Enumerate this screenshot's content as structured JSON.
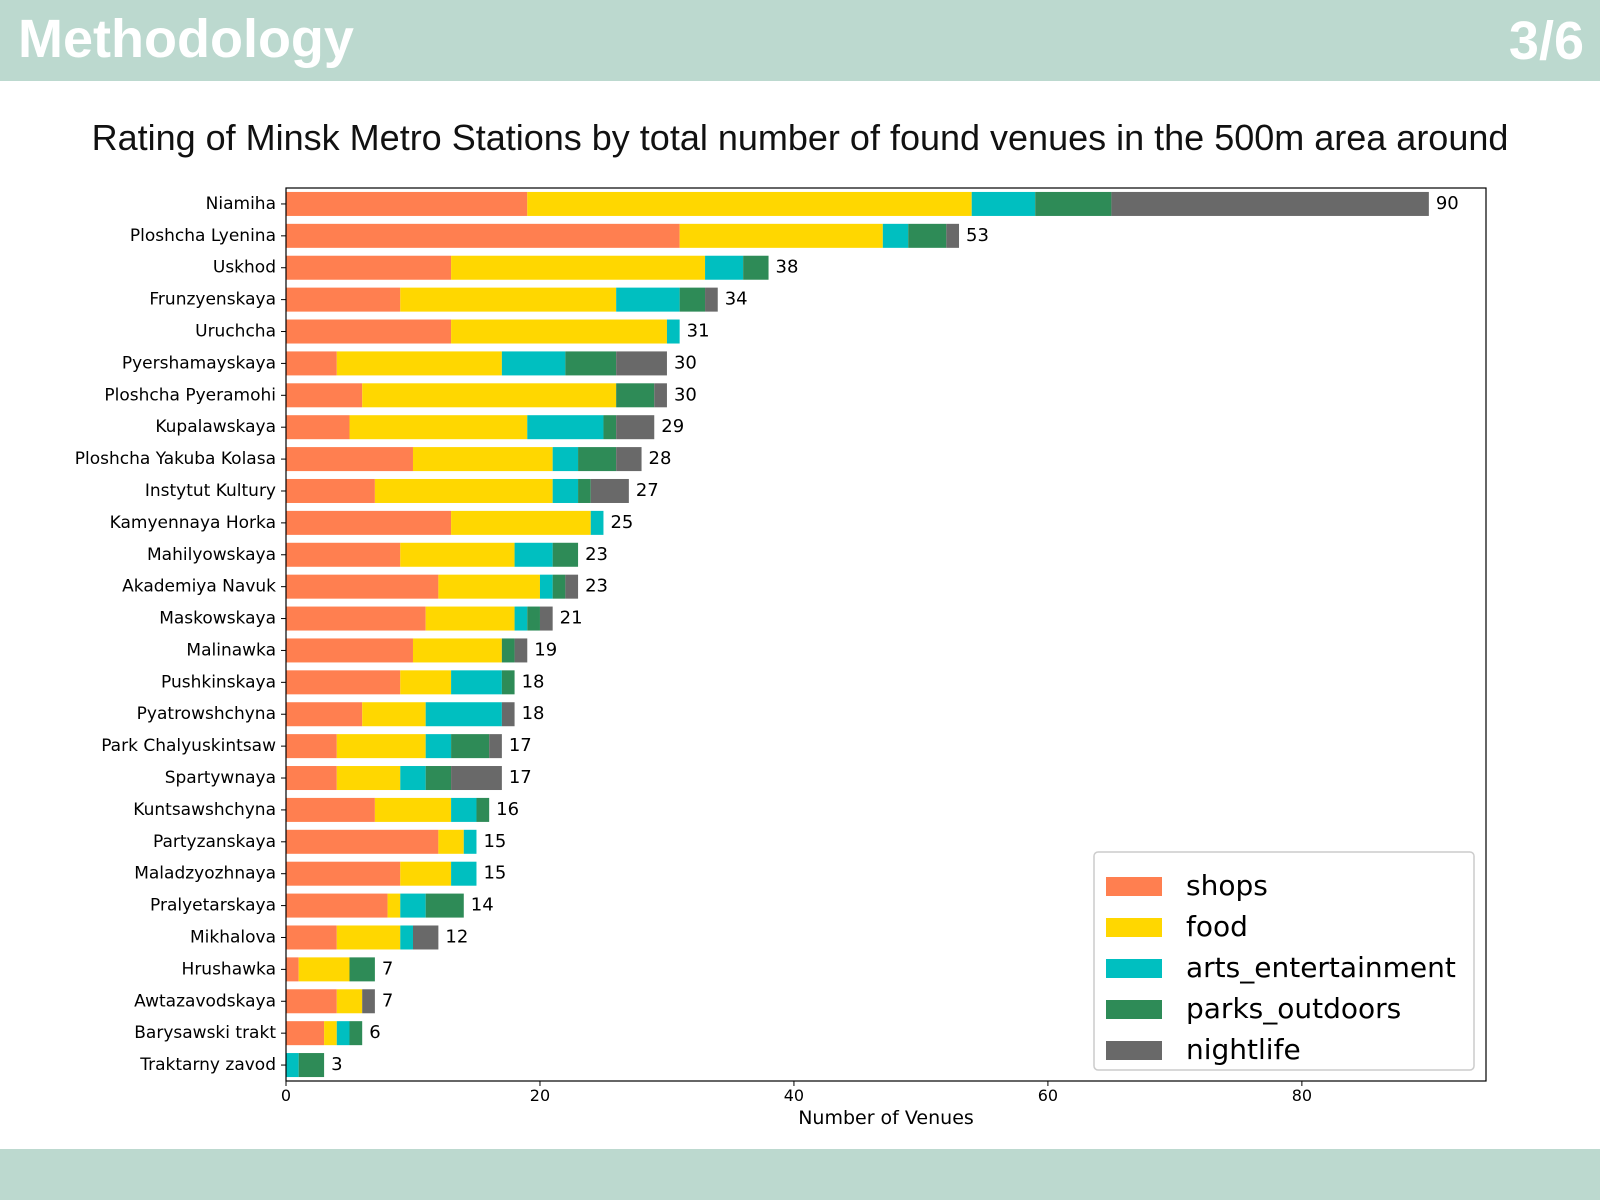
{
  "header": {
    "title": "Methodology",
    "page_number": "3/6"
  },
  "chart_data": {
    "type": "bar",
    "orientation": "horizontal",
    "stacked": true,
    "title": "Rating of Minsk Metro Stations by total number of found venues in the 500m area around",
    "xlabel": "Number of Venues",
    "ylabel": "",
    "xlim": [
      0,
      94.5
    ],
    "xticks": [
      0,
      20,
      40,
      60,
      80
    ],
    "grid": false,
    "legend_position": "bottom-right",
    "categories": [
      "Niamiha",
      "Ploshcha Lyenina",
      "Uskhod",
      "Frunzyenskaya",
      "Uruchcha",
      "Pyershamayskaya",
      "Ploshcha Pyeramohi",
      "Kupalawskaya",
      "Ploshcha Yakuba Kolasa",
      "Instytut Kultury",
      "Kamyennaya Horka",
      "Mahilyowskaya",
      "Akademiya Navuk",
      "Maskowskaya",
      "Malinawka",
      "Pushkinskaya",
      "Pyatrowshchyna",
      "Park Chalyuskintsaw",
      "Spartywnaya",
      "Kuntsawshchyna",
      "Partyzanskaya",
      "Maladzyozhnaya",
      "Pralyetarskaya",
      "Mikhalova",
      "Hrushawka",
      "Awtazavodskaya",
      "Barysawski trakt",
      "Traktarny zavod"
    ],
    "totals": [
      90,
      53,
      38,
      34,
      31,
      30,
      30,
      29,
      28,
      27,
      25,
      23,
      23,
      21,
      19,
      18,
      18,
      17,
      17,
      16,
      15,
      15,
      14,
      12,
      7,
      7,
      6,
      3
    ],
    "series": [
      {
        "name": "shops",
        "color": "#ff7f50",
        "values": [
          19,
          31,
          13,
          9,
          13,
          4,
          6,
          5,
          10,
          7,
          13,
          9,
          12,
          11,
          10,
          9,
          6,
          4,
          4,
          7,
          12,
          9,
          8,
          4,
          1,
          4,
          3,
          0
        ]
      },
      {
        "name": "food",
        "color": "#ffd700",
        "values": [
          35,
          16,
          20,
          17,
          17,
          13,
          20,
          14,
          11,
          14,
          11,
          9,
          8,
          7,
          7,
          4,
          5,
          7,
          5,
          6,
          2,
          4,
          1,
          5,
          4,
          2,
          1,
          0
        ]
      },
      {
        "name": "arts_entertainment",
        "color": "#00bfc0",
        "values": [
          5,
          2,
          3,
          5,
          1,
          5,
          0,
          6,
          2,
          2,
          1,
          3,
          1,
          1,
          0,
          4,
          6,
          2,
          2,
          2,
          1,
          2,
          2,
          1,
          0,
          0,
          1,
          1
        ]
      },
      {
        "name": "parks_outdoors",
        "color": "#2e8b57",
        "values": [
          6,
          3,
          2,
          2,
          0,
          4,
          3,
          1,
          3,
          1,
          0,
          2,
          1,
          1,
          1,
          1,
          0,
          3,
          2,
          1,
          0,
          0,
          3,
          0,
          2,
          0,
          1,
          2
        ]
      },
      {
        "name": "nightlife",
        "color": "#696969",
        "values": [
          25,
          1,
          0,
          1,
          0,
          4,
          1,
          3,
          2,
          3,
          0,
          0,
          1,
          1,
          1,
          0,
          1,
          1,
          4,
          0,
          0,
          0,
          0,
          2,
          0,
          1,
          0,
          0
        ]
      }
    ]
  }
}
